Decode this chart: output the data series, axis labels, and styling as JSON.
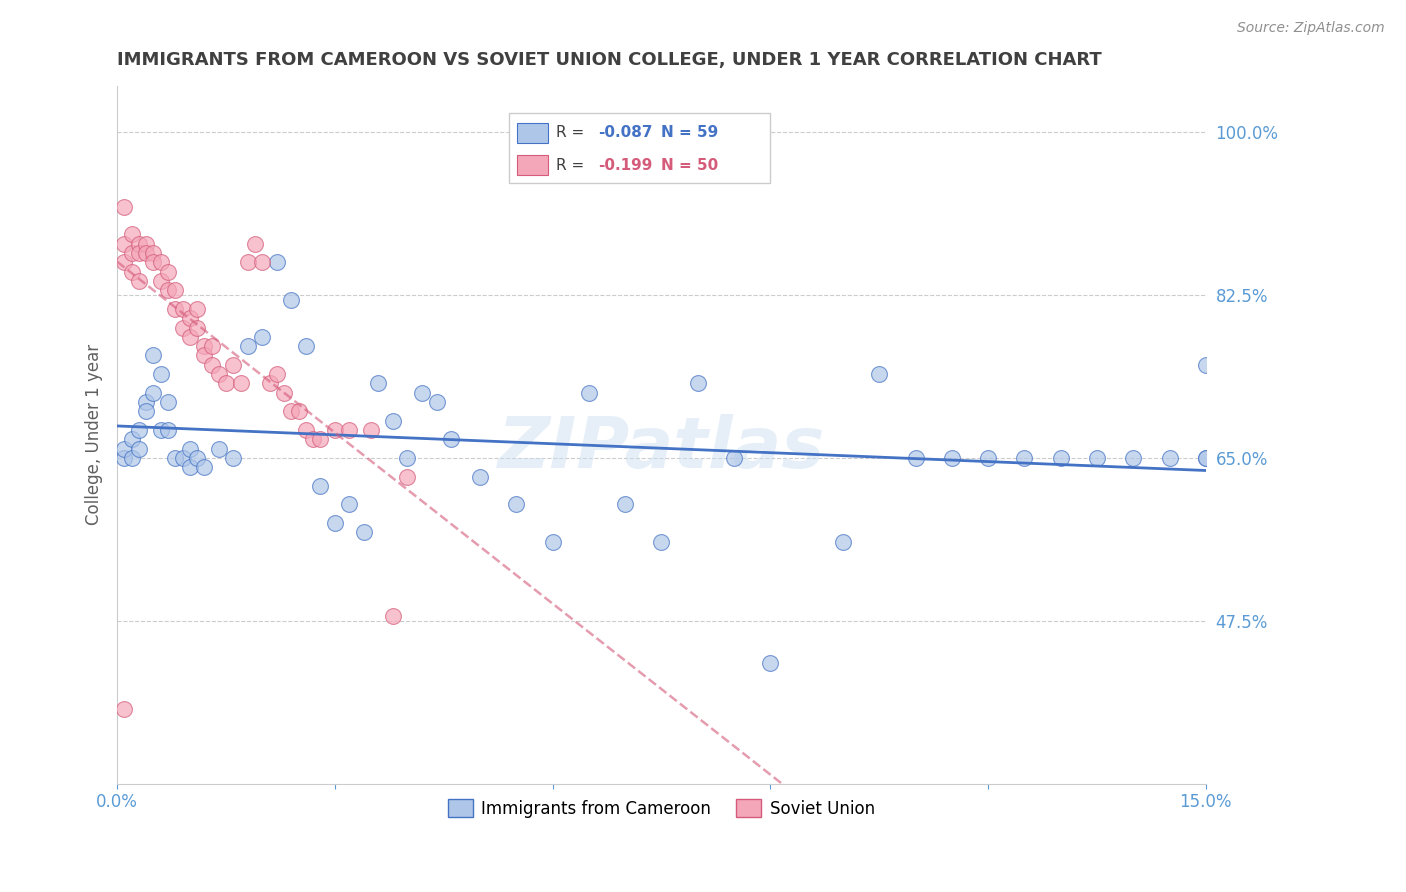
{
  "title": "IMMIGRANTS FROM CAMEROON VS SOVIET UNION COLLEGE, UNDER 1 YEAR CORRELATION CHART",
  "source": "Source: ZipAtlas.com",
  "ylabel": "College, Under 1 year",
  "x_min": 0.0,
  "x_max": 0.15,
  "y_min": 0.3,
  "y_max": 1.05,
  "x_ticks": [
    0.0,
    0.03,
    0.06,
    0.09,
    0.12,
    0.15
  ],
  "x_tick_labels": [
    "0.0%",
    "",
    "",
    "",
    "",
    "15.0%"
  ],
  "y_ticks": [
    0.475,
    0.65,
    0.825,
    1.0
  ],
  "y_tick_labels": [
    "47.5%",
    "65.0%",
    "82.5%",
    "100.0%"
  ],
  "cameroon_R": -0.087,
  "cameroon_N": 59,
  "soviet_R": -0.199,
  "soviet_N": 50,
  "cameroon_color": "#aec6e8",
  "soviet_color": "#f4a7b9",
  "cameroon_edge_color": "#4472c4",
  "soviet_edge_color": "#d45b7a",
  "cameroon_line_color": "#4472c4",
  "soviet_line_color": "#d45b7a",
  "legend_cameroon_label": "Immigrants from Cameroon",
  "legend_soviet_label": "Soviet Union",
  "cameroon_x": [
    0.001,
    0.001,
    0.002,
    0.002,
    0.003,
    0.003,
    0.004,
    0.004,
    0.005,
    0.005,
    0.006,
    0.006,
    0.007,
    0.007,
    0.008,
    0.009,
    0.01,
    0.01,
    0.011,
    0.012,
    0.014,
    0.016,
    0.018,
    0.02,
    0.022,
    0.024,
    0.026,
    0.028,
    0.03,
    0.032,
    0.034,
    0.036,
    0.038,
    0.04,
    0.042,
    0.044,
    0.046,
    0.05,
    0.055,
    0.06,
    0.065,
    0.07,
    0.075,
    0.08,
    0.085,
    0.09,
    0.1,
    0.105,
    0.11,
    0.115,
    0.12,
    0.125,
    0.13,
    0.135,
    0.14,
    0.145,
    0.15,
    0.15,
    0.15
  ],
  "cameroon_y": [
    0.65,
    0.66,
    0.67,
    0.65,
    0.68,
    0.66,
    0.71,
    0.7,
    0.76,
    0.72,
    0.74,
    0.68,
    0.71,
    0.68,
    0.65,
    0.65,
    0.66,
    0.64,
    0.65,
    0.64,
    0.66,
    0.65,
    0.77,
    0.78,
    0.86,
    0.82,
    0.77,
    0.62,
    0.58,
    0.6,
    0.57,
    0.73,
    0.69,
    0.65,
    0.72,
    0.71,
    0.67,
    0.63,
    0.6,
    0.56,
    0.72,
    0.6,
    0.56,
    0.73,
    0.65,
    0.43,
    0.56,
    0.74,
    0.65,
    0.65,
    0.65,
    0.65,
    0.65,
    0.65,
    0.65,
    0.65,
    0.65,
    0.75,
    0.65
  ],
  "soviet_x": [
    0.001,
    0.001,
    0.001,
    0.002,
    0.002,
    0.002,
    0.003,
    0.003,
    0.003,
    0.004,
    0.004,
    0.005,
    0.005,
    0.006,
    0.006,
    0.007,
    0.007,
    0.008,
    0.008,
    0.009,
    0.009,
    0.01,
    0.01,
    0.011,
    0.011,
    0.012,
    0.012,
    0.013,
    0.013,
    0.014,
    0.015,
    0.016,
    0.017,
    0.018,
    0.019,
    0.02,
    0.021,
    0.022,
    0.023,
    0.024,
    0.025,
    0.026,
    0.027,
    0.028,
    0.03,
    0.032,
    0.035,
    0.038,
    0.04,
    0.001
  ],
  "soviet_y": [
    0.92,
    0.88,
    0.86,
    0.89,
    0.87,
    0.85,
    0.88,
    0.87,
    0.84,
    0.88,
    0.87,
    0.87,
    0.86,
    0.86,
    0.84,
    0.85,
    0.83,
    0.83,
    0.81,
    0.81,
    0.79,
    0.8,
    0.78,
    0.81,
    0.79,
    0.77,
    0.76,
    0.77,
    0.75,
    0.74,
    0.73,
    0.75,
    0.73,
    0.86,
    0.88,
    0.86,
    0.73,
    0.74,
    0.72,
    0.7,
    0.7,
    0.68,
    0.67,
    0.67,
    0.68,
    0.68,
    0.68,
    0.48,
    0.63,
    0.38
  ],
  "watermark": "ZIPatlas",
  "background_color": "#ffffff",
  "grid_color": "#cccccc",
  "tick_label_color": "#5b9bd5",
  "title_color": "#404040",
  "axis_label_color": "#606060"
}
